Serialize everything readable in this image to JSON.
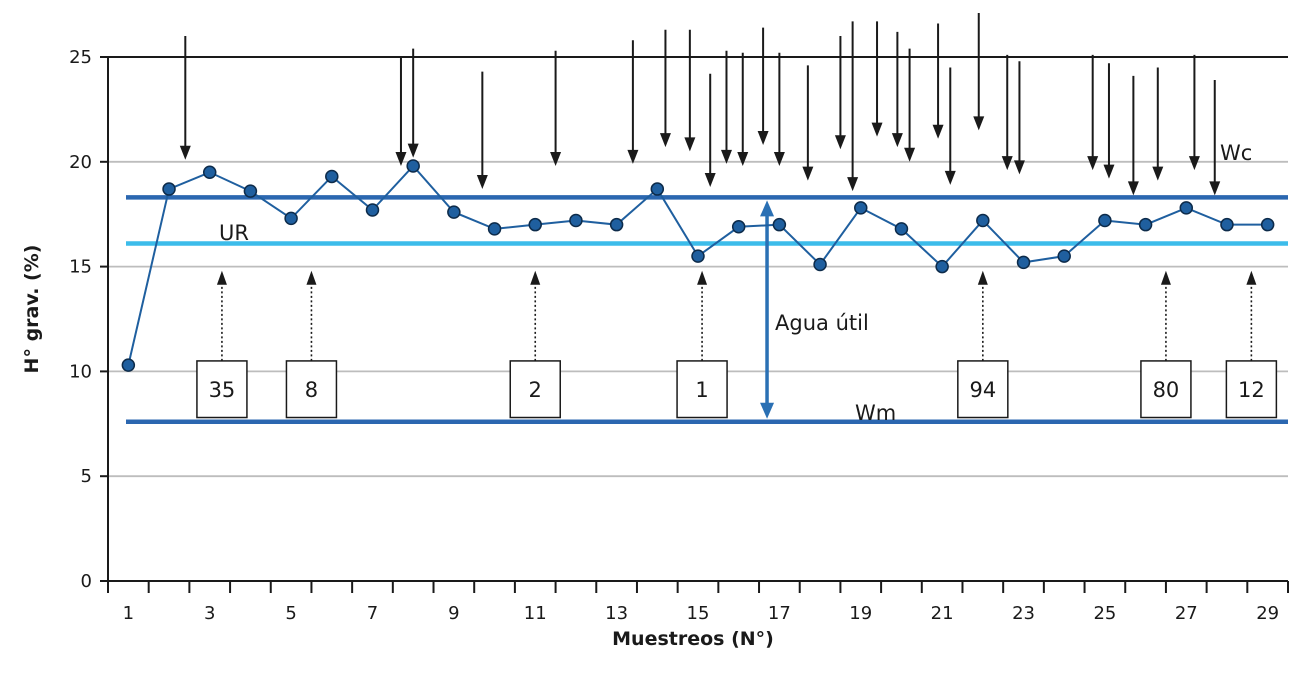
{
  "chart_data": {
    "type": "line",
    "title": "",
    "xlabel": "Muestreos (N°)",
    "ylabel": "H° grav. (%)",
    "xlim": [
      0.5,
      29.5
    ],
    "ylim": [
      0,
      25
    ],
    "x_ticks": [
      1,
      3,
      5,
      7,
      9,
      11,
      13,
      15,
      17,
      19,
      21,
      23,
      25,
      27,
      29
    ],
    "y_ticks": [
      0,
      5,
      10,
      15,
      20,
      25
    ],
    "grid": "horizontal",
    "series": [
      {
        "color": "#1f5f9f",
        "marker_color": "#1f5f9f",
        "x": [
          1,
          2,
          3,
          4,
          5,
          6,
          7,
          8,
          9,
          10,
          11,
          12,
          13,
          14,
          15,
          16,
          17,
          18,
          19,
          20,
          21,
          22,
          23,
          24,
          25,
          26,
          27,
          28,
          29
        ],
        "values": [
          10.3,
          18.7,
          19.5,
          18.6,
          17.3,
          19.3,
          17.7,
          19.8,
          17.6,
          16.8,
          17.0,
          17.2,
          17.0,
          18.7,
          15.5,
          16.9,
          17.0,
          15.1,
          17.8,
          16.8,
          15.0,
          17.2,
          15.2,
          15.5,
          17.2,
          17.0,
          17.8,
          17.0,
          17.0
        ]
      }
    ],
    "reference_lines": [
      {
        "label": "Wc",
        "y": 18.3,
        "color": "#2b67b0"
      },
      {
        "label": "UR",
        "y": 16.1,
        "color": "#3cbcea"
      },
      {
        "label": "Wm",
        "y": 7.6,
        "color": "#2b67b0"
      }
    ],
    "available_water": {
      "label": "Agua útil",
      "from": 7.6,
      "to": 18.3,
      "x": 16.5,
      "color": "#2a70b4"
    },
    "rain_events": [
      {
        "x": 2.4,
        "top": 26.0,
        "bottom": 20.1
      },
      {
        "x": 7.7,
        "top": 25.0,
        "bottom": 19.8
      },
      {
        "x": 8.0,
        "top": 25.4,
        "bottom": 20.2
      },
      {
        "x": 9.7,
        "top": 24.3,
        "bottom": 18.7
      },
      {
        "x": 11.5,
        "top": 25.3,
        "bottom": 19.8
      },
      {
        "x": 13.4,
        "top": 25.8,
        "bottom": 19.9
      },
      {
        "x": 14.2,
        "top": 26.3,
        "bottom": 20.7
      },
      {
        "x": 14.8,
        "top": 26.3,
        "bottom": 20.5
      },
      {
        "x": 15.3,
        "top": 24.2,
        "bottom": 18.8
      },
      {
        "x": 15.7,
        "top": 25.3,
        "bottom": 19.9
      },
      {
        "x": 16.1,
        "top": 25.2,
        "bottom": 19.8
      },
      {
        "x": 16.6,
        "top": 26.4,
        "bottom": 20.8
      },
      {
        "x": 17.0,
        "top": 25.2,
        "bottom": 19.8
      },
      {
        "x": 17.7,
        "top": 24.6,
        "bottom": 19.1
      },
      {
        "x": 18.5,
        "top": 26.0,
        "bottom": 20.6
      },
      {
        "x": 18.8,
        "top": 26.7,
        "bottom": 18.6
      },
      {
        "x": 19.4,
        "top": 26.7,
        "bottom": 21.2
      },
      {
        "x": 19.9,
        "top": 26.2,
        "bottom": 20.7
      },
      {
        "x": 20.2,
        "top": 25.4,
        "bottom": 20.0
      },
      {
        "x": 20.9,
        "top": 26.6,
        "bottom": 21.1
      },
      {
        "x": 21.2,
        "top": 24.5,
        "bottom": 18.9
      },
      {
        "x": 21.9,
        "top": 27.1,
        "bottom": 21.5
      },
      {
        "x": 22.6,
        "top": 25.1,
        "bottom": 19.6
      },
      {
        "x": 22.9,
        "top": 24.8,
        "bottom": 19.4
      },
      {
        "x": 24.7,
        "top": 25.1,
        "bottom": 19.6
      },
      {
        "x": 25.1,
        "top": 24.7,
        "bottom": 19.2
      },
      {
        "x": 25.7,
        "top": 24.1,
        "bottom": 18.4
      },
      {
        "x": 26.3,
        "top": 24.5,
        "bottom": 19.1
      },
      {
        "x": 27.2,
        "top": 25.1,
        "bottom": 19.6
      },
      {
        "x": 27.7,
        "top": 23.9,
        "bottom": 18.4
      }
    ],
    "irrigation_events": [
      {
        "label": "35",
        "x": 3.3
      },
      {
        "label": "8",
        "x": 5.5
      },
      {
        "label": "2",
        "x": 11.0
      },
      {
        "label": "1",
        "x": 15.1
      },
      {
        "label": "94",
        "x": 22.0
      },
      {
        "label": "80",
        "x": 26.5
      },
      {
        "label": "12",
        "x": 28.6
      }
    ]
  }
}
